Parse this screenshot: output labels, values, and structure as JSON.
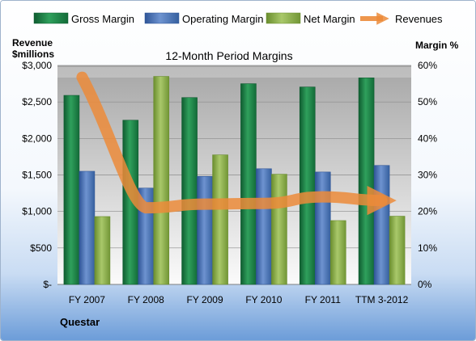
{
  "chart_data": {
    "type": "bar",
    "title": "12-Month Period Margins",
    "company": "Questar",
    "categories": [
      "FY 2007",
      "FY 2008",
      "FY 2009",
      "FY 2010",
      "FY 2011",
      "TTM 3-2012"
    ],
    "series": [
      {
        "name": "Gross Margin",
        "axis": "right",
        "values": [
          51.8,
          45.0,
          51.2,
          55.0,
          54.1,
          56.6
        ],
        "color": "#1e8a4a"
      },
      {
        "name": "Operating Margin",
        "axis": "right",
        "values": [
          31.0,
          26.4,
          29.6,
          31.7,
          30.8,
          32.6
        ],
        "color": "#4a73b8"
      },
      {
        "name": "Net Margin",
        "axis": "right",
        "values": [
          18.6,
          57.0,
          35.5,
          30.2,
          17.5,
          18.7
        ],
        "color": "#8db34a"
      }
    ],
    "line": {
      "name": "Revenues",
      "axis": "left",
      "values": [
        2750,
        1050,
        1100,
        1110,
        1200,
        1150
      ],
      "color": "#ec8b3a"
    },
    "left_axis": {
      "label_line1": "Revenue",
      "label_line2": "$millions",
      "ticks": [
        "$-",
        "$500",
        "$1,000",
        "$1,500",
        "$2,000",
        "$2,500",
        "$3,000"
      ],
      "min": 0,
      "max": 3000
    },
    "right_axis": {
      "label": "Margin %",
      "ticks": [
        "0%",
        "10%",
        "20%",
        "30%",
        "40%",
        "50%",
        "60%"
      ],
      "min": 0,
      "max": 60
    },
    "legend_position": "top",
    "grid": true
  }
}
